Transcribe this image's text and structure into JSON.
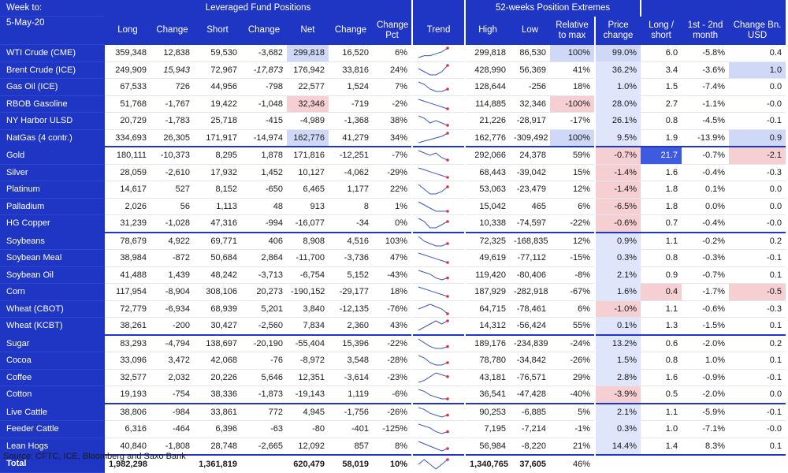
{
  "header": {
    "week_label": "Week to:",
    "week_date": "5-May-20",
    "group_leveraged": "Leveraged Fund Positions",
    "group_extremes": "52-weeks Position Extremes",
    "columns": [
      "Long",
      "Change",
      "Short",
      "Change",
      "Net",
      "Change",
      "Change Pct",
      "Trend",
      "High",
      "Low",
      "Relative to max",
      "Price change",
      "Long / short",
      "1st - 2nd month",
      "Change Bn. USD"
    ]
  },
  "rows": [
    {
      "name": "WTI Crude (CME)",
      "long": "359,348",
      "chg_long": "12,838",
      "short": "59,530",
      "chg_short": "-3,682",
      "net": "299,818",
      "chg_net": "16,520",
      "pct": "6%",
      "high": "299,818",
      "low": "86,530",
      "rel": "100%",
      "price": "99.0%",
      "ls": "6.0",
      "m12": "-5.8%",
      "usd": "0.4",
      "trend": [
        3,
        4,
        4,
        5,
        6,
        8
      ]
    },
    {
      "name": "Brent Crude (ICE)",
      "long": "249,909",
      "chg_long": "15,943",
      "short": "72,967",
      "chg_short": "-17,873",
      "net": "176,942",
      "chg_net": "33,816",
      "pct": "24%",
      "high": "428,990",
      "low": "56,369",
      "rel": "41%",
      "price": "36.2%",
      "ls": "3.4",
      "m12": "-3.6%",
      "usd": "1.0",
      "trend": [
        6,
        5,
        4,
        4,
        5,
        7
      ]
    },
    {
      "name": "Gas Oil (ICE)",
      "long": "67,533",
      "chg_long": "726",
      "short": "44,956",
      "chg_short": "-798",
      "net": "22,577",
      "chg_net": "1,524",
      "pct": "7%",
      "high": "128,644",
      "low": "-256",
      "rel": "18%",
      "price": "1.0%",
      "ls": "1.5",
      "m12": "-7.4%",
      "usd": "0.0",
      "trend": [
        8,
        7,
        5,
        4,
        4,
        5
      ]
    },
    {
      "name": "RBOB Gasoline",
      "long": "51,768",
      "chg_long": "-1,767",
      "short": "19,422",
      "chg_short": "-1,048",
      "net": "32,346",
      "chg_net": "-719",
      "pct": "-2%",
      "high": "114,885",
      "low": "32,346",
      "rel": "-100%",
      "price": "28.0%",
      "ls": "2.7",
      "m12": "-1.1%",
      "usd": "-0.0",
      "trend": [
        8,
        7,
        6,
        5,
        4,
        3
      ]
    },
    {
      "name": "NY Harbor ULSD",
      "long": "20,729",
      "chg_long": "-1,783",
      "short": "25,718",
      "chg_short": "-415",
      "net": "-4,989",
      "chg_net": "-1,368",
      "pct": "38%",
      "high": "21,226",
      "low": "-28,917",
      "rel": "-17%",
      "price": "26.1%",
      "ls": "0.8",
      "m12": "-4.5%",
      "usd": "-0.1",
      "trend": [
        7,
        6,
        4,
        5,
        4,
        3
      ]
    },
    {
      "name": "NatGas (4 contr.)",
      "long": "334,693",
      "chg_long": "26,305",
      "short": "171,917",
      "chg_short": "-14,974",
      "net": "162,776",
      "chg_net": "41,279",
      "pct": "34%",
      "high": "162,776",
      "low": "-309,492",
      "rel": "100%",
      "price": "9.5%",
      "ls": "1.9",
      "m12": "-13.9%",
      "usd": "0.9",
      "trend": [
        2,
        3,
        4,
        5,
        6,
        8
      ]
    },
    {
      "name": "Gold",
      "long": "180,111",
      "chg_long": "-10,373",
      "short": "8,295",
      "chg_short": "1,878",
      "net": "171,816",
      "chg_net": "-12,251",
      "pct": "-7%",
      "high": "292,066",
      "low": "24,378",
      "rel": "59%",
      "price": "-0.7%",
      "ls": "21.7",
      "m12": "-0.7%",
      "usd": "-2.1",
      "trend": [
        8,
        7,
        6,
        7,
        5,
        4
      ]
    },
    {
      "name": "Silver",
      "long": "28,059",
      "chg_long": "-2,610",
      "short": "17,932",
      "chg_short": "1,452",
      "net": "10,127",
      "chg_net": "-4,062",
      "pct": "-29%",
      "high": "68,443",
      "low": "-39,042",
      "rel": "15%",
      "price": "-1.4%",
      "ls": "1.6",
      "m12": "-0.4%",
      "usd": "-0.3",
      "trend": [
        8,
        7,
        6,
        5,
        4,
        3
      ]
    },
    {
      "name": "Platinum",
      "long": "14,617",
      "chg_long": "527",
      "short": "8,152",
      "chg_short": "-650",
      "net": "6,465",
      "chg_net": "1,177",
      "pct": "22%",
      "high": "53,063",
      "low": "-23,479",
      "rel": "12%",
      "price": "-1.4%",
      "ls": "1.8",
      "m12": "0.1%",
      "usd": "0.0",
      "trend": [
        7,
        5,
        3,
        3,
        4,
        6
      ]
    },
    {
      "name": "Palladium",
      "long": "2,026",
      "chg_long": "56",
      "short": "1,113",
      "chg_short": "48",
      "net": "913",
      "chg_net": "8",
      "pct": "1%",
      "high": "15,042",
      "low": "465",
      "rel": "6%",
      "price": "-6.5%",
      "ls": "1.8",
      "m12": "0.0%",
      "usd": "0.0",
      "trend": [
        7,
        6,
        5,
        4,
        4,
        4
      ]
    },
    {
      "name": "HG Copper",
      "long": "31,239",
      "chg_long": "-1,028",
      "short": "47,316",
      "chg_short": "-994",
      "net": "-16,077",
      "chg_net": "-34",
      "pct": "0%",
      "high": "10,338",
      "low": "-74,597",
      "rel": "-22%",
      "price": "-0.6%",
      "ls": "0.7",
      "m12": "-0.4%",
      "usd": "-0.0",
      "trend": [
        6,
        5,
        3,
        3,
        4,
        5
      ]
    },
    {
      "name": "Soybeans",
      "long": "78,679",
      "chg_long": "4,922",
      "short": "69,771",
      "chg_short": "406",
      "net": "8,908",
      "chg_net": "4,516",
      "pct": "103%",
      "high": "72,325",
      "low": "-168,835",
      "rel": "12%",
      "price": "0.9%",
      "ls": "1.1",
      "m12": "-0.2%",
      "usd": "0.2",
      "trend": [
        8,
        6,
        5,
        4,
        4,
        5
      ]
    },
    {
      "name": "Soybean Meal",
      "long": "38,984",
      "chg_long": "-872",
      "short": "50,684",
      "chg_short": "2,864",
      "net": "-11,700",
      "chg_net": "-3,736",
      "pct": "47%",
      "high": "49,619",
      "low": "-77,112",
      "rel": "-15%",
      "price": "0.3%",
      "ls": "0.8",
      "m12": "-0.3%",
      "usd": "-0.1",
      "trend": [
        8,
        7,
        6,
        5,
        4,
        3
      ]
    },
    {
      "name": "Soybean Oil",
      "long": "41,488",
      "chg_long": "1,439",
      "short": "48,242",
      "chg_short": "-3,713",
      "net": "-6,754",
      "chg_net": "5,152",
      "pct": "-43%",
      "high": "119,420",
      "low": "-80,406",
      "rel": "-8%",
      "price": "2.1%",
      "ls": "0.9",
      "m12": "-0.7%",
      "usd": "0.1",
      "trend": [
        8,
        7,
        6,
        4,
        3,
        4
      ]
    },
    {
      "name": "Corn",
      "long": "117,954",
      "chg_long": "-8,904",
      "short": "308,106",
      "chg_short": "20,273",
      "net": "-190,152",
      "chg_net": "-29,177",
      "pct": "18%",
      "high": "187,929",
      "low": "-282,918",
      "rel": "-67%",
      "price": "1.6%",
      "ls": "0.4",
      "m12": "-1.7%",
      "usd": "-0.5",
      "trend": [
        8,
        7,
        6,
        5,
        4,
        3
      ]
    },
    {
      "name": "Wheat (CBOT)",
      "long": "72,779",
      "chg_long": "-6,934",
      "short": "68,939",
      "chg_short": "5,201",
      "net": "3,840",
      "chg_net": "-12,135",
      "pct": "-76%",
      "high": "64,715",
      "low": "-78,461",
      "rel": "6%",
      "price": "-1.0%",
      "ls": "1.1",
      "m12": "-0.6%",
      "usd": "-0.3",
      "trend": [
        5,
        6,
        7,
        6,
        5,
        3
      ]
    },
    {
      "name": "Wheat (KCBT)",
      "long": "38,261",
      "chg_long": "-200",
      "short": "30,427",
      "chg_short": "-2,560",
      "net": "7,834",
      "chg_net": "2,360",
      "pct": "43%",
      "high": "14,312",
      "low": "-56,424",
      "rel": "55%",
      "price": "0.1%",
      "ls": "1.3",
      "m12": "-1.5%",
      "usd": "0.1",
      "trend": [
        3,
        4,
        5,
        6,
        5,
        6
      ]
    },
    {
      "name": "Sugar",
      "long": "83,293",
      "chg_long": "-4,794",
      "short": "138,697",
      "chg_short": "-20,190",
      "net": "-55,404",
      "chg_net": "15,396",
      "pct": "-22%",
      "high": "189,176",
      "low": "-234,839",
      "rel": "-24%",
      "price": "13.2%",
      "ls": "0.6",
      "m12": "-2.0%",
      "usd": "0.2",
      "trend": [
        8,
        6,
        4,
        3,
        3,
        4
      ]
    },
    {
      "name": "Cocoa",
      "long": "33,096",
      "chg_long": "3,472",
      "short": "42,068",
      "chg_short": "-76",
      "net": "-8,972",
      "chg_net": "3,548",
      "pct": "-28%",
      "high": "78,780",
      "low": "-34,842",
      "rel": "-26%",
      "price": "1.5%",
      "ls": "0.8",
      "m12": "1.0%",
      "usd": "0.1",
      "trend": [
        8,
        7,
        5,
        4,
        4,
        5
      ]
    },
    {
      "name": "Coffee",
      "long": "32,577",
      "chg_long": "2,032",
      "short": "20,226",
      "chg_short": "5,646",
      "net": "12,351",
      "chg_net": "-3,614",
      "pct": "-23%",
      "high": "43,181",
      "low": "-76,571",
      "rel": "29%",
      "price": "2.8%",
      "ls": "1.6",
      "m12": "-0.9%",
      "usd": "-0.1",
      "trend": [
        3,
        4,
        6,
        8,
        7,
        6
      ]
    },
    {
      "name": "Cotton",
      "long": "19,193",
      "chg_long": "-754",
      "short": "38,336",
      "chg_short": "-1,873",
      "net": "-19,143",
      "chg_net": "1,119",
      "pct": "-6%",
      "high": "36,541",
      "low": "-47,428",
      "rel": "-40%",
      "price": "-3.9%",
      "ls": "0.5",
      "m12": "-2.0%",
      "usd": "0.0",
      "trend": [
        8,
        7,
        5,
        4,
        3,
        3
      ]
    },
    {
      "name": "Live Cattle",
      "long": "38,806",
      "chg_long": "-984",
      "short": "33,861",
      "chg_short": "772",
      "net": "4,945",
      "chg_net": "-1,756",
      "pct": "-26%",
      "high": "90,253",
      "low": "-6,885",
      "rel": "5%",
      "price": "2.1%",
      "ls": "1.1",
      "m12": "-5.9%",
      "usd": "-0.1",
      "trend": [
        8,
        7,
        5,
        4,
        3,
        4
      ]
    },
    {
      "name": "Feeder Cattle",
      "long": "6,316",
      "chg_long": "-464",
      "short": "6,396",
      "chg_short": "-63",
      "net": "-80",
      "chg_net": "-401",
      "pct": "-125%",
      "high": "7,195",
      "low": "-7,214",
      "rel": "-1%",
      "price": "0.3%",
      "ls": "1.0",
      "m12": "-7.1%",
      "usd": "-0.0",
      "trend": [
        8,
        7,
        6,
        4,
        3,
        4
      ]
    },
    {
      "name": "Lean Hogs",
      "long": "40,840",
      "chg_long": "-1,808",
      "short": "28,748",
      "chg_short": "-2,665",
      "net": "12,092",
      "chg_net": "857",
      "pct": "8%",
      "high": "56,984",
      "low": "-8,220",
      "rel": "21%",
      "price": "14.4%",
      "ls": "1.4",
      "m12": "8.3%",
      "usd": "0.1",
      "trend": [
        8,
        7,
        6,
        5,
        4,
        5
      ]
    }
  ],
  "total": {
    "name": "Total",
    "long": "1,982,298",
    "short": "1,361,819",
    "net": "620,479",
    "chg_net": "58,019",
    "pct": "10%",
    "high": "1,340,765",
    "low": "37,605",
    "rel": "46%",
    "trend": [
      5,
      6,
      5,
      4,
      5,
      6
    ]
  },
  "source": "Source: CFTC, ICE, Bloomberg and Saxo Bank",
  "colors": {
    "header_blue": "#1f35c4",
    "negative_red": "#e0303a",
    "highlight_light_blue": "#cfd8f7",
    "highlight_red": "#f6cfd2",
    "highlight_dark_blue": "#3d5ae0"
  }
}
